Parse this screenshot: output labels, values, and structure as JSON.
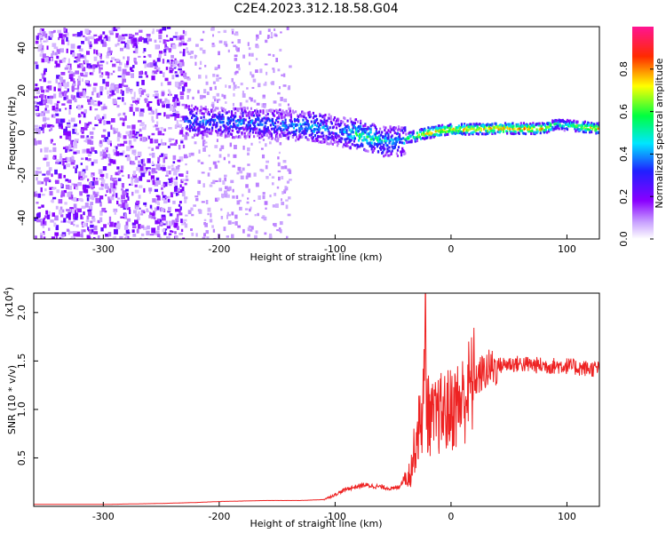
{
  "figure_title": "C2E4.2023.312.18.58.G04",
  "chart_data": [
    {
      "type": "heatmap",
      "xlabel": "Height of straight line (km)",
      "ylabel": "Frequency (Hz)",
      "xlim": [
        -360,
        128
      ],
      "ylim": [
        -50,
        50
      ],
      "x_ticks": [
        -300,
        -200,
        -100,
        0,
        100
      ],
      "x_tick_labels": [
        "-300",
        "-200",
        "-100",
        "0",
        "100"
      ],
      "y_ticks": [
        -40,
        -20,
        0,
        20,
        40
      ],
      "y_tick_labels": [
        "-40",
        "-20",
        "0",
        "20",
        "40"
      ],
      "colorbar": {
        "label": "Normalized spectral amplitude",
        "range": [
          0,
          1
        ],
        "ticks": [
          0.0,
          0.2,
          0.4,
          0.6,
          0.8
        ],
        "tick_labels": [
          "0.0",
          "0.2",
          "0.4",
          "0.6",
          "0.8"
        ],
        "colors": [
          "#ffffff",
          "#8a00ff",
          "#2020ff",
          "#00e6ff",
          "#00ff40",
          "#ffff00",
          "#ff2a00",
          "#ff1493"
        ]
      },
      "ridge": {
        "x": [
          -230,
          -200,
          -170,
          -140,
          -120,
          -100,
          -80,
          -60,
          -45,
          -35,
          -20,
          -10,
          0,
          40,
          80,
          90,
          128
        ],
        "freq": [
          6,
          5,
          4.5,
          3.5,
          3,
          1,
          -1,
          -4,
          -4,
          -2,
          0,
          1,
          1.5,
          2,
          2,
          4,
          2
        ],
        "amplitude": [
          0.35,
          0.35,
          0.35,
          0.35,
          0.45,
          0.3,
          0.55,
          0.45,
          0.4,
          0.6,
          0.8,
          0.75,
          0.75,
          0.8,
          0.8,
          0.5,
          0.8
        ]
      },
      "noise_region_x": [
        -360,
        -230
      ],
      "scattered_region_x": [
        -230,
        -140
      ]
    },
    {
      "type": "line",
      "xlabel": "Height of straight line (km)",
      "ylabel": "SNR (10 * v/v)",
      "y_multiplier_label": "(x10",
      "y_multiplier_exp": "4",
      "xlim": [
        -360,
        128
      ],
      "ylim": [
        0,
        2.2
      ],
      "x_ticks": [
        -300,
        -200,
        -100,
        0,
        100
      ],
      "x_tick_labels": [
        "-300",
        "-200",
        "-100",
        "0",
        "100"
      ],
      "y_ticks": [
        0.5,
        1.0,
        1.5,
        2.0
      ],
      "y_tick_labels": [
        "0.5",
        "1.0",
        "1.5",
        "2.0"
      ],
      "color": "#ee2222",
      "series": [
        {
          "x": [
            -360,
            -300,
            -250,
            -220,
            -200,
            -160,
            -130,
            -110,
            -100,
            -90,
            -75,
            -60,
            -50,
            -45,
            -40,
            -35,
            -30,
            -25,
            -22,
            -20,
            -15,
            -10,
            0,
            10,
            20,
            30,
            40,
            50,
            60,
            80,
            100,
            110,
            120,
            128
          ],
          "values": [
            0.02,
            0.02,
            0.03,
            0.04,
            0.05,
            0.06,
            0.06,
            0.07,
            0.12,
            0.18,
            0.22,
            0.2,
            0.18,
            0.2,
            0.3,
            0.35,
            0.7,
            0.95,
            1.35,
            0.95,
            0.88,
            0.95,
            1.0,
            1.1,
            1.3,
            1.4,
            1.45,
            1.47,
            1.47,
            1.45,
            1.45,
            1.43,
            1.42,
            1.42
          ]
        }
      ],
      "spike": {
        "x": -22,
        "value": 2.2
      }
    }
  ]
}
